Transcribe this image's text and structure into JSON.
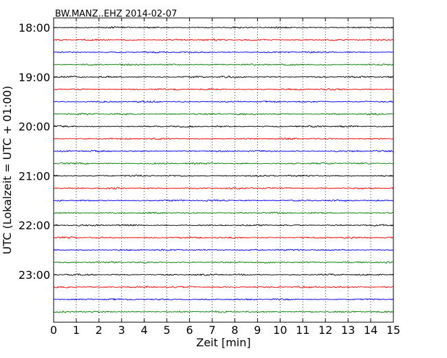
{
  "chart_data": {
    "type": "line",
    "title": "BW.MANZ..EHZ 2014-02-07",
    "xlabel": "Zeit  [min]",
    "ylabel": "UTC (Lokalzeit = UTC + 01:00)",
    "xlim": [
      0,
      15
    ],
    "x_ticks": [
      "0",
      "1",
      "2",
      "3",
      "4",
      "5",
      "6",
      "7",
      "8",
      "9",
      "10",
      "11",
      "12",
      "13",
      "14",
      "15"
    ],
    "y_tick_labels": [
      "18:00",
      "19:00",
      "20:00",
      "21:00",
      "22:00",
      "23:00"
    ],
    "trace_interval_minutes": 15,
    "trace_start": "18:00",
    "trace_count": 24,
    "colors": [
      "#000000",
      "#ff0000",
      "#0000ff",
      "#007f00"
    ],
    "grid": {
      "x": true,
      "y": false
    },
    "series": []
  }
}
